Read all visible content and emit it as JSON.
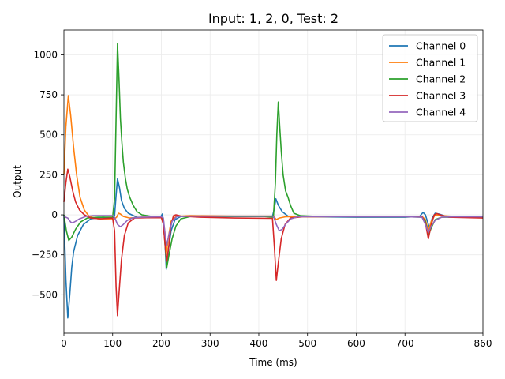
{
  "chart_data": {
    "type": "line",
    "title": "Input: 1, 2, 0, Test: 2",
    "xlabel": "Time (ms)",
    "ylabel": "Output",
    "xlim": [
      0,
      860
    ],
    "ylim": [
      -740,
      1155
    ],
    "xticks": [
      0,
      100,
      200,
      300,
      400,
      500,
      600,
      700,
      860
    ],
    "yticks": [
      -500,
      -250,
      0,
      250,
      500,
      750,
      1000
    ],
    "grid": true,
    "legend_position": "top-right",
    "series": [
      {
        "name": "Channel 0",
        "color": "#1f77b4",
        "points": [
          [
            0,
            0
          ],
          [
            4,
            -400
          ],
          [
            8,
            -645
          ],
          [
            12,
            -500
          ],
          [
            16,
            -330
          ],
          [
            20,
            -230
          ],
          [
            28,
            -130
          ],
          [
            40,
            -60
          ],
          [
            55,
            -25
          ],
          [
            80,
            -15
          ],
          [
            100,
            -20
          ],
          [
            104,
            -5
          ],
          [
            107,
            120
          ],
          [
            110,
            225
          ],
          [
            114,
            170
          ],
          [
            118,
            90
          ],
          [
            124,
            40
          ],
          [
            132,
            10
          ],
          [
            150,
            -15
          ],
          [
            180,
            -18
          ],
          [
            198,
            -15
          ],
          [
            202,
            5
          ],
          [
            205,
            -50
          ],
          [
            208,
            -200
          ],
          [
            210,
            -340
          ],
          [
            214,
            -230
          ],
          [
            220,
            -100
          ],
          [
            228,
            -30
          ],
          [
            240,
            -10
          ],
          [
            280,
            -8
          ],
          [
            350,
            -10
          ],
          [
            428,
            -10
          ],
          [
            432,
            40
          ],
          [
            435,
            100
          ],
          [
            440,
            60
          ],
          [
            448,
            20
          ],
          [
            460,
            -8
          ],
          [
            500,
            -12
          ],
          [
            600,
            -15
          ],
          [
            700,
            -15
          ],
          [
            730,
            -10
          ],
          [
            737,
            15
          ],
          [
            742,
            0
          ],
          [
            746,
            -40
          ],
          [
            750,
            -80
          ],
          [
            756,
            -20
          ],
          [
            762,
            10
          ],
          [
            770,
            5
          ],
          [
            790,
            -15
          ],
          [
            860,
            -12
          ]
        ]
      },
      {
        "name": "Channel 1",
        "color": "#ff7f0e",
        "points": [
          [
            0,
            250
          ],
          [
            4,
            550
          ],
          [
            9,
            745
          ],
          [
            14,
            620
          ],
          [
            20,
            420
          ],
          [
            26,
            250
          ],
          [
            33,
            110
          ],
          [
            42,
            30
          ],
          [
            52,
            -10
          ],
          [
            70,
            -25
          ],
          [
            90,
            -25
          ],
          [
            104,
            -25
          ],
          [
            108,
            -15
          ],
          [
            112,
            10
          ],
          [
            116,
            5
          ],
          [
            122,
            -10
          ],
          [
            135,
            -20
          ],
          [
            160,
            -15
          ],
          [
            198,
            -15
          ],
          [
            203,
            -20
          ],
          [
            207,
            -100
          ],
          [
            210,
            -250
          ],
          [
            214,
            -150
          ],
          [
            220,
            -40
          ],
          [
            230,
            -10
          ],
          [
            260,
            -5
          ],
          [
            350,
            -8
          ],
          [
            430,
            -8
          ],
          [
            436,
            -30
          ],
          [
            442,
            -20
          ],
          [
            455,
            -12
          ],
          [
            500,
            -12
          ],
          [
            600,
            -10
          ],
          [
            700,
            -10
          ],
          [
            735,
            -10
          ],
          [
            742,
            -30
          ],
          [
            748,
            -100
          ],
          [
            754,
            -40
          ],
          [
            762,
            0
          ],
          [
            775,
            -5
          ],
          [
            800,
            -10
          ],
          [
            860,
            -10
          ]
        ]
      },
      {
        "name": "Channel 2",
        "color": "#2ca02c",
        "points": [
          [
            0,
            0
          ],
          [
            5,
            -100
          ],
          [
            10,
            -160
          ],
          [
            16,
            -140
          ],
          [
            24,
            -90
          ],
          [
            34,
            -45
          ],
          [
            48,
            -20
          ],
          [
            70,
            -15
          ],
          [
            100,
            -15
          ],
          [
            104,
            100
          ],
          [
            107,
            600
          ],
          [
            110,
            1070
          ],
          [
            113,
            850
          ],
          [
            116,
            600
          ],
          [
            119,
            450
          ],
          [
            122,
            330
          ],
          [
            126,
            230
          ],
          [
            130,
            160
          ],
          [
            135,
            110
          ],
          [
            142,
            60
          ],
          [
            150,
            20
          ],
          [
            160,
            0
          ],
          [
            180,
            -10
          ],
          [
            200,
            -15
          ],
          [
            204,
            -50
          ],
          [
            208,
            -200
          ],
          [
            211,
            -330
          ],
          [
            215,
            -260
          ],
          [
            222,
            -150
          ],
          [
            230,
            -70
          ],
          [
            240,
            -25
          ],
          [
            260,
            -10
          ],
          [
            320,
            -10
          ],
          [
            410,
            -10
          ],
          [
            430,
            -15
          ],
          [
            434,
            200
          ],
          [
            437,
            500
          ],
          [
            440,
            705
          ],
          [
            443,
            550
          ],
          [
            446,
            400
          ],
          [
            450,
            250
          ],
          [
            455,
            150
          ],
          [
            460,
            110
          ],
          [
            465,
            60
          ],
          [
            472,
            10
          ],
          [
            485,
            -5
          ],
          [
            520,
            -10
          ],
          [
            600,
            -12
          ],
          [
            700,
            -12
          ],
          [
            735,
            -15
          ],
          [
            742,
            -40
          ],
          [
            748,
            -130
          ],
          [
            754,
            -80
          ],
          [
            762,
            -30
          ],
          [
            775,
            -15
          ],
          [
            800,
            -15
          ],
          [
            860,
            -12
          ]
        ]
      },
      {
        "name": "Channel 3",
        "color": "#d62728",
        "points": [
          [
            0,
            80
          ],
          [
            4,
            200
          ],
          [
            8,
            285
          ],
          [
            12,
            240
          ],
          [
            18,
            150
          ],
          [
            24,
            80
          ],
          [
            32,
            30
          ],
          [
            42,
            0
          ],
          [
            55,
            -20
          ],
          [
            75,
            -25
          ],
          [
            100,
            -20
          ],
          [
            104,
            -100
          ],
          [
            107,
            -450
          ],
          [
            110,
            -630
          ],
          [
            114,
            -450
          ],
          [
            118,
            -280
          ],
          [
            124,
            -130
          ],
          [
            132,
            -50
          ],
          [
            145,
            -20
          ],
          [
            170,
            -18
          ],
          [
            200,
            -18
          ],
          [
            204,
            -60
          ],
          [
            208,
            -200
          ],
          [
            211,
            -290
          ],
          [
            215,
            -200
          ],
          [
            220,
            -60
          ],
          [
            225,
            -5
          ],
          [
            230,
            0
          ],
          [
            240,
            -8
          ],
          [
            280,
            -15
          ],
          [
            350,
            -20
          ],
          [
            428,
            -22
          ],
          [
            432,
            -200
          ],
          [
            436,
            -410
          ],
          [
            440,
            -300
          ],
          [
            446,
            -150
          ],
          [
            454,
            -60
          ],
          [
            465,
            -20
          ],
          [
            490,
            -12
          ],
          [
            600,
            -10
          ],
          [
            700,
            -10
          ],
          [
            735,
            -12
          ],
          [
            742,
            -50
          ],
          [
            748,
            -150
          ],
          [
            754,
            -60
          ],
          [
            760,
            0
          ],
          [
            765,
            8
          ],
          [
            772,
            0
          ],
          [
            790,
            -15
          ],
          [
            860,
            -20
          ]
        ]
      },
      {
        "name": "Channel 4",
        "color": "#9467bd",
        "points": [
          [
            0,
            -10
          ],
          [
            8,
            -20
          ],
          [
            14,
            -45
          ],
          [
            18,
            -50
          ],
          [
            24,
            -40
          ],
          [
            32,
            -25
          ],
          [
            45,
            -10
          ],
          [
            60,
            -5
          ],
          [
            80,
            -5
          ],
          [
            100,
            -5
          ],
          [
            104,
            -15
          ],
          [
            110,
            -60
          ],
          [
            116,
            -75
          ],
          [
            122,
            -60
          ],
          [
            130,
            -35
          ],
          [
            140,
            -20
          ],
          [
            160,
            -15
          ],
          [
            200,
            -12
          ],
          [
            204,
            -20
          ],
          [
            208,
            -130
          ],
          [
            211,
            -190
          ],
          [
            215,
            -130
          ],
          [
            222,
            -40
          ],
          [
            232,
            -10
          ],
          [
            260,
            -8
          ],
          [
            350,
            -8
          ],
          [
            430,
            -8
          ],
          [
            436,
            -60
          ],
          [
            442,
            -100
          ],
          [
            448,
            -90
          ],
          [
            456,
            -55
          ],
          [
            466,
            -25
          ],
          [
            480,
            -12
          ],
          [
            520,
            -10
          ],
          [
            600,
            -12
          ],
          [
            700,
            -12
          ],
          [
            735,
            -15
          ],
          [
            742,
            -60
          ],
          [
            748,
            -110
          ],
          [
            754,
            -70
          ],
          [
            762,
            -35
          ],
          [
            775,
            -15
          ],
          [
            800,
            -12
          ],
          [
            860,
            -12
          ]
        ]
      }
    ]
  }
}
